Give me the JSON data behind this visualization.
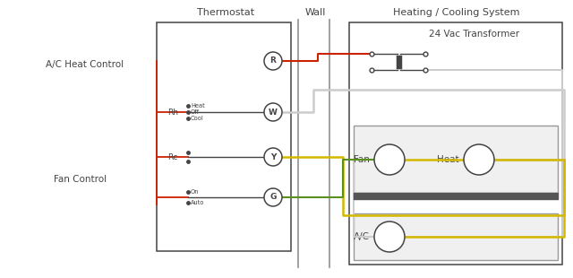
{
  "bg_color": "#ffffff",
  "thermostat_label": "Thermostat",
  "wall_label": "Wall",
  "hvac_label": "Heating / Cooling System",
  "transformer_label": "24 Vac Transformer",
  "ac_heat_label": "A/C Heat Control",
  "fan_label": "Fan Control",
  "terminal_R": "R",
  "terminal_W": "W",
  "terminal_Y": "Y",
  "terminal_G": "G",
  "label_Rh": "Rh",
  "label_Rc": "Rc",
  "label_heat": "Heat",
  "label_off": "Off",
  "label_cool": "Cool",
  "label_on": "On",
  "label_auto": "Auto",
  "label_fan": "Fan",
  "label_heat_unit": "Heat",
  "label_ac": "A/C",
  "color_red": "#cc2200",
  "color_yellow": "#d4b800",
  "color_green": "#5a9020",
  "color_dark": "#444444",
  "color_gray": "#999999",
  "color_light_gray": "#cccccc"
}
